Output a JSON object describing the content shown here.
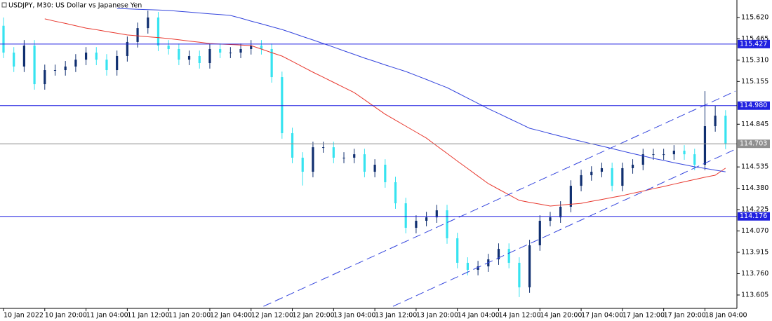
{
  "chart_data": {
    "type": "candlestick",
    "title": "USDJPY, M30:  US Dollar vs Japanese Yen",
    "up_color": "#102f70",
    "down_color": "#36e3f0",
    "xlim": [
      -0.34,
      71.1
    ],
    "ylim": [
      113.508,
      115.747
    ],
    "xticks": [
      {
        "value": 0,
        "label": "10 Jan 2022"
      },
      {
        "value": 4,
        "label": "10 Jan 20:00"
      },
      {
        "value": 8,
        "label": "11 Jan 04:00"
      },
      {
        "value": 12,
        "label": "11 Jan 12:00"
      },
      {
        "value": 16,
        "label": "11 Jan 20:00"
      },
      {
        "value": 20,
        "label": "12 Jan 04:00"
      },
      {
        "value": 24,
        "label": "12 Jan 12:00"
      },
      {
        "value": 28,
        "label": "12 Jan 20:00"
      },
      {
        "value": 32,
        "label": "13 Jan 04:00"
      },
      {
        "value": 36,
        "label": "13 Jan 12:00"
      },
      {
        "value": 40,
        "label": "13 Jan 20:00"
      },
      {
        "value": 44,
        "label": "14 Jan 04:00"
      },
      {
        "value": 48,
        "label": "14 Jan 12:00"
      },
      {
        "value": 52,
        "label": "14 Jan 20:00"
      },
      {
        "value": 56,
        "label": "17 Jan 04:00"
      },
      {
        "value": 60,
        "label": "17 Jan 12:00"
      },
      {
        "value": 64,
        "label": "17 Jan 20:00"
      },
      {
        "value": 68,
        "label": "18 Jan 04:00"
      }
    ],
    "yticks": [
      {
        "value": 115.62,
        "label": "115.620"
      },
      115.465,
      {
        "value": 115.31,
        "label": "115.310"
      },
      115.155,
      114.845,
      114.535,
      {
        "value": 114.38,
        "label": "114.380"
      },
      114.225,
      {
        "value": 114.07,
        "label": "114.070"
      },
      113.915,
      {
        "value": 113.76,
        "label": "113.760"
      },
      113.605
    ],
    "open": [
      115.56,
      115.365,
      115.264,
      115.416,
      115.136,
      115.238,
      115.238,
      115.264,
      115.314,
      115.365,
      115.314,
      115.238,
      115.34,
      115.442,
      115.543,
      115.62,
      115.416,
      115.391,
      115.314,
      115.34,
      115.289,
      115.391,
      115.365,
      115.365,
      115.391,
      115.416,
      115.391,
      115.187,
      114.78,
      114.602,
      114.5,
      114.678,
      114.678,
      114.602,
      114.602,
      114.627,
      114.5,
      114.551,
      114.424,
      114.271,
      114.093,
      114.144,
      114.169,
      114.22,
      114.017,
      113.839,
      113.788,
      113.813,
      113.864,
      113.94,
      113.839,
      113.661,
      113.966,
      114.144,
      114.169,
      114.246,
      114.398,
      114.475,
      114.5,
      114.526,
      114.398,
      114.526,
      114.551,
      114.627,
      114.627,
      114.627,
      114.653,
      114.627,
      114.551,
      114.831,
      114.907
    ],
    "high": [
      115.62,
      115.405,
      115.456,
      115.456,
      115.278,
      115.278,
      115.304,
      115.354,
      115.405,
      115.405,
      115.354,
      115.38,
      115.482,
      115.583,
      115.67,
      115.66,
      115.456,
      115.431,
      115.38,
      115.38,
      115.431,
      115.431,
      115.405,
      115.431,
      115.456,
      115.456,
      115.431,
      115.227,
      114.82,
      114.642,
      114.718,
      114.718,
      114.718,
      114.642,
      114.667,
      114.667,
      114.591,
      114.591,
      114.464,
      114.311,
      114.184,
      114.209,
      114.26,
      114.26,
      114.057,
      113.879,
      113.853,
      113.904,
      113.98,
      113.98,
      113.879,
      114.006,
      114.184,
      114.209,
      114.286,
      114.438,
      114.515,
      114.54,
      114.566,
      114.566,
      114.566,
      114.591,
      114.667,
      114.667,
      114.667,
      114.693,
      114.693,
      114.667,
      115.085,
      114.98,
      114.947
    ],
    "low": [
      115.325,
      115.224,
      115.224,
      115.096,
      115.096,
      115.198,
      115.198,
      115.224,
      115.274,
      115.274,
      115.198,
      115.198,
      115.3,
      115.402,
      115.503,
      115.376,
      115.351,
      115.274,
      115.274,
      115.249,
      115.249,
      115.325,
      115.325,
      115.325,
      115.351,
      115.351,
      115.147,
      114.74,
      114.562,
      114.4,
      114.46,
      114.638,
      114.562,
      114.562,
      114.562,
      114.46,
      114.46,
      114.384,
      114.231,
      114.053,
      114.053,
      114.104,
      114.129,
      113.977,
      113.799,
      113.748,
      113.748,
      113.773,
      113.824,
      113.799,
      113.59,
      113.621,
      113.926,
      114.104,
      114.129,
      114.206,
      114.358,
      114.435,
      114.46,
      114.358,
      114.358,
      114.486,
      114.511,
      114.587,
      114.587,
      114.587,
      114.587,
      114.511,
      114.511,
      114.791,
      114.664
    ],
    "close": [
      115.365,
      115.264,
      115.416,
      115.136,
      115.238,
      115.238,
      115.264,
      115.314,
      115.365,
      115.314,
      115.238,
      115.34,
      115.442,
      115.543,
      115.62,
      115.416,
      115.391,
      115.314,
      115.34,
      115.289,
      115.391,
      115.365,
      115.365,
      115.391,
      115.416,
      115.391,
      115.187,
      114.78,
      114.602,
      114.5,
      114.678,
      114.678,
      114.602,
      114.602,
      114.627,
      114.5,
      114.551,
      114.424,
      114.271,
      114.093,
      114.144,
      114.169,
      114.22,
      114.017,
      113.839,
      113.788,
      113.813,
      113.864,
      113.94,
      113.839,
      113.661,
      113.966,
      114.144,
      114.169,
      114.246,
      114.398,
      114.475,
      114.5,
      114.526,
      114.398,
      114.526,
      114.551,
      114.627,
      114.627,
      114.627,
      114.653,
      114.627,
      114.551,
      114.831,
      114.907,
      114.704
    ],
    "series": [
      {
        "color": "#e8382e",
        "values": [
          null,
          null,
          null,
          null,
          115.61,
          115.593,
          115.577,
          115.56,
          115.543,
          115.531,
          115.518,
          115.506,
          115.493,
          115.487,
          115.48,
          115.474,
          115.467,
          115.458,
          115.449,
          115.44,
          115.431,
          115.427,
          115.424,
          115.42,
          115.416,
          115.391,
          115.365,
          115.34,
          115.301,
          115.262,
          115.223,
          115.186,
          115.149,
          115.112,
          115.075,
          115.023,
          114.97,
          114.918,
          114.875,
          114.831,
          114.788,
          114.744,
          114.688,
          114.633,
          114.577,
          114.523,
          114.468,
          114.414,
          114.373,
          114.333,
          114.292,
          114.278,
          114.265,
          114.251,
          114.258,
          114.264,
          114.271,
          114.285,
          114.299,
          114.313,
          114.327,
          114.344,
          114.36,
          114.377,
          114.393,
          114.41,
          114.427,
          114.444,
          114.46,
          114.475,
          114.526
        ]
      },
      {
        "color": "#3344dd",
        "values": [
          null,
          null,
          null,
          null,
          null,
          null,
          null,
          null,
          null,
          null,
          null,
          115.686,
          115.683,
          115.68,
          115.677,
          115.674,
          115.671,
          115.665,
          115.659,
          115.653,
          115.647,
          115.641,
          115.635,
          115.615,
          115.594,
          115.574,
          115.553,
          115.533,
          115.508,
          115.482,
          115.457,
          115.431,
          115.405,
          115.378,
          115.352,
          115.325,
          115.301,
          115.276,
          115.252,
          115.228,
          115.199,
          115.17,
          115.14,
          115.111,
          115.073,
          115.034,
          114.996,
          114.958,
          114.923,
          114.887,
          114.852,
          114.816,
          114.797,
          114.777,
          114.758,
          114.739,
          114.721,
          114.703,
          114.686,
          114.668,
          114.65,
          114.632,
          114.615,
          114.597,
          114.582,
          114.566,
          114.551,
          114.536,
          114.524,
          114.512,
          114.5
        ]
      }
    ],
    "levels": [
      {
        "value": 115.427,
        "label": "115.427",
        "color": "#2020e0"
      },
      {
        "value": 114.98,
        "label": "114.980",
        "color": "#2020e0"
      },
      {
        "value": 114.703,
        "label": "114.703",
        "color": "#909090"
      },
      {
        "value": 114.176,
        "label": "114.176",
        "color": "#2020e0"
      }
    ],
    "trendlines": [
      {
        "color": "#3344dd",
        "x": [
          25.2,
          70.95
        ],
        "y": [
          113.523,
          115.085
        ]
      },
      {
        "color": "#3344dd",
        "x": [
          37.76,
          70.95
        ],
        "y": [
          113.523,
          114.663
        ]
      }
    ]
  }
}
